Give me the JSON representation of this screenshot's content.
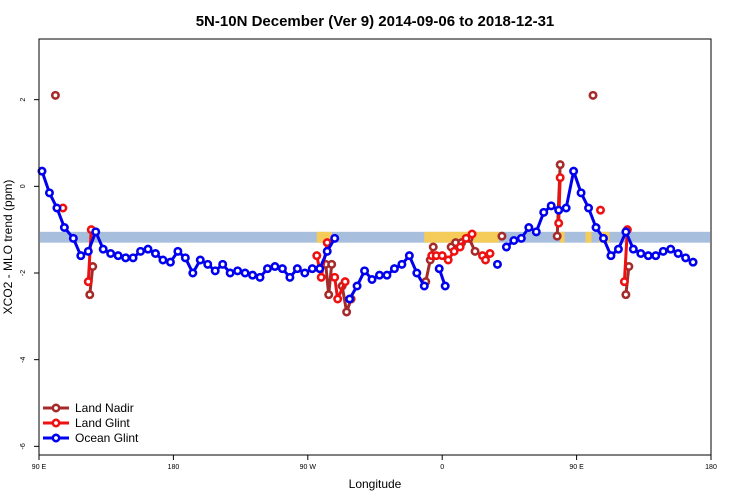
{
  "chart_data": {
    "type": "line",
    "title": "5N-10N December (Ver 9)   2014-09-06 to 2018-12-31",
    "xlabel": "Longitude",
    "ylabel": "XCO2 - MLO trend (ppm)",
    "xlim": [
      0,
      450
    ],
    "ylim": [
      -6.2,
      3.4
    ],
    "xticks": [
      {
        "value": 0,
        "label": "90 E"
      },
      {
        "value": 90,
        "label": "180"
      },
      {
        "value": 180,
        "label": "90 W"
      },
      {
        "value": 270,
        "label": "0"
      },
      {
        "value": 360,
        "label": "90 E"
      },
      {
        "value": 450,
        "label": "180"
      }
    ],
    "yticks": [
      {
        "value": -6,
        "label": "-6"
      },
      {
        "value": -4,
        "label": "-4"
      },
      {
        "value": -2,
        "label": "-2"
      },
      {
        "value": 0,
        "label": "0"
      },
      {
        "value": 2,
        "label": "2"
      }
    ],
    "land_band": {
      "y_low": -1.3,
      "y_high": -1.05,
      "color": "#a8bedd",
      "land_color": "#f5cc5a",
      "land_ranges": [
        [
          186,
          196
        ],
        [
          258,
          308
        ],
        [
          349,
          352
        ],
        [
          366,
          370
        ],
        [
          375,
          382
        ]
      ]
    },
    "series": [
      {
        "name": "Land Nadir",
        "color": "#a52a2a",
        "segments": [
          [
            [
              11,
              2.1
            ]
          ],
          [
            [
              34,
              -2.5
            ],
            [
              36,
              -1.85
            ]
          ],
          [
            [
              192,
              -1.8
            ],
            [
              194,
              -2.5
            ],
            [
              196,
              -1.8
            ]
          ],
          [
            [
              203,
              -2.3
            ],
            [
              206,
              -2.9
            ],
            [
              209,
              -2.6
            ]
          ],
          [
            [
              259,
              -2.2
            ],
            [
              262,
              -1.7
            ],
            [
              264,
              -1.4
            ]
          ],
          [
            [
              276,
              -1.4
            ],
            [
              279,
              -1.3
            ],
            [
              283,
              -1.3
            ],
            [
              288,
              -1.2
            ],
            [
              292,
              -1.5
            ]
          ],
          [
            [
              310,
              -1.15
            ]
          ],
          [
            [
              347,
              -1.15
            ],
            [
              349,
              0.5
            ]
          ],
          [
            [
              371,
              2.1
            ]
          ],
          [
            [
              393,
              -2.5
            ],
            [
              395,
              -1.85
            ]
          ]
        ]
      },
      {
        "name": "Land Glint",
        "color": "#ee1111",
        "segments": [
          [
            [
              16,
              -0.5
            ]
          ],
          [
            [
              33,
              -2.2
            ],
            [
              35,
              -1.0
            ]
          ],
          [
            [
              186,
              -1.6
            ],
            [
              189,
              -2.1
            ],
            [
              193,
              -1.3
            ]
          ],
          [
            [
              198,
              -2.1
            ],
            [
              200,
              -2.6
            ],
            [
              205,
              -2.2
            ]
          ],
          [
            [
              263,
              -1.6
            ],
            [
              266,
              -1.6
            ],
            [
              270,
              -1.6
            ],
            [
              274,
              -1.7
            ],
            [
              278,
              -1.5
            ],
            [
              282,
              -1.4
            ],
            [
              286,
              -1.2
            ],
            [
              290,
              -1.1
            ]
          ],
          [
            [
              297,
              -1.6
            ],
            [
              299,
              -1.7
            ],
            [
              302,
              -1.55
            ]
          ],
          [
            [
              348,
              -0.85
            ],
            [
              349,
              0.2
            ]
          ],
          [
            [
              376,
              -0.55
            ]
          ],
          [
            [
              392,
              -2.2
            ],
            [
              394,
              -1.0
            ]
          ]
        ]
      },
      {
        "name": "Ocean Glint",
        "color": "#0000ee",
        "segments": [
          [
            [
              2,
              0.35
            ],
            [
              7,
              -0.15
            ],
            [
              12,
              -0.5
            ],
            [
              17,
              -0.95
            ],
            [
              23,
              -1.2
            ],
            [
              28,
              -1.6
            ],
            [
              33,
              -1.5
            ],
            [
              38,
              -1.05
            ],
            [
              43,
              -1.45
            ],
            [
              48,
              -1.55
            ],
            [
              53,
              -1.6
            ],
            [
              58,
              -1.65
            ],
            [
              63,
              -1.65
            ],
            [
              68,
              -1.5
            ],
            [
              73,
              -1.45
            ],
            [
              78,
              -1.55
            ],
            [
              83,
              -1.7
            ],
            [
              88,
              -1.75
            ],
            [
              93,
              -1.5
            ],
            [
              98,
              -1.65
            ],
            [
              103,
              -2.0
            ],
            [
              108,
              -1.7
            ],
            [
              113,
              -1.8
            ],
            [
              118,
              -1.95
            ],
            [
              123,
              -1.8
            ],
            [
              128,
              -2.0
            ],
            [
              133,
              -1.95
            ],
            [
              138,
              -2.0
            ],
            [
              143,
              -2.05
            ],
            [
              148,
              -2.1
            ],
            [
              153,
              -1.9
            ],
            [
              158,
              -1.85
            ],
            [
              163,
              -1.9
            ],
            [
              168,
              -2.1
            ],
            [
              173,
              -1.9
            ],
            [
              178,
              -2.0
            ],
            [
              183,
              -1.9
            ],
            [
              188,
              -1.9
            ],
            [
              193,
              -1.5
            ],
            [
              198,
              -1.2
            ]
          ],
          [
            [
              208,
              -2.6
            ],
            [
              213,
              -2.3
            ],
            [
              218,
              -1.95
            ],
            [
              223,
              -2.15
            ],
            [
              228,
              -2.05
            ],
            [
              233,
              -2.05
            ],
            [
              238,
              -1.9
            ],
            [
              243,
              -1.8
            ],
            [
              248,
              -1.6
            ],
            [
              253,
              -2.0
            ],
            [
              258,
              -2.3
            ]
          ],
          [
            [
              268,
              -1.9
            ],
            [
              272,
              -2.3
            ]
          ],
          [
            [
              307,
              -1.8
            ]
          ],
          [
            [
              313,
              -1.4
            ],
            [
              318,
              -1.25
            ],
            [
              323,
              -1.2
            ],
            [
              328,
              -0.95
            ],
            [
              333,
              -1.05
            ],
            [
              338,
              -0.6
            ],
            [
              343,
              -0.45
            ],
            [
              348,
              -0.55
            ],
            [
              353,
              -0.5
            ],
            [
              358,
              0.35
            ],
            [
              363,
              -0.15
            ],
            [
              368,
              -0.5
            ],
            [
              373,
              -0.95
            ],
            [
              378,
              -1.2
            ],
            [
              383,
              -1.6
            ],
            [
              388,
              -1.45
            ],
            [
              393,
              -1.05
            ],
            [
              398,
              -1.45
            ],
            [
              403,
              -1.55
            ],
            [
              408,
              -1.6
            ],
            [
              413,
              -1.6
            ],
            [
              418,
              -1.5
            ],
            [
              423,
              -1.45
            ],
            [
              428,
              -1.55
            ],
            [
              433,
              -1.65
            ],
            [
              438,
              -1.75
            ]
          ]
        ]
      }
    ],
    "legend": {
      "placement": "bottom-left",
      "entries": [
        "Land Nadir",
        "Land Glint",
        "Ocean Glint"
      ]
    }
  }
}
